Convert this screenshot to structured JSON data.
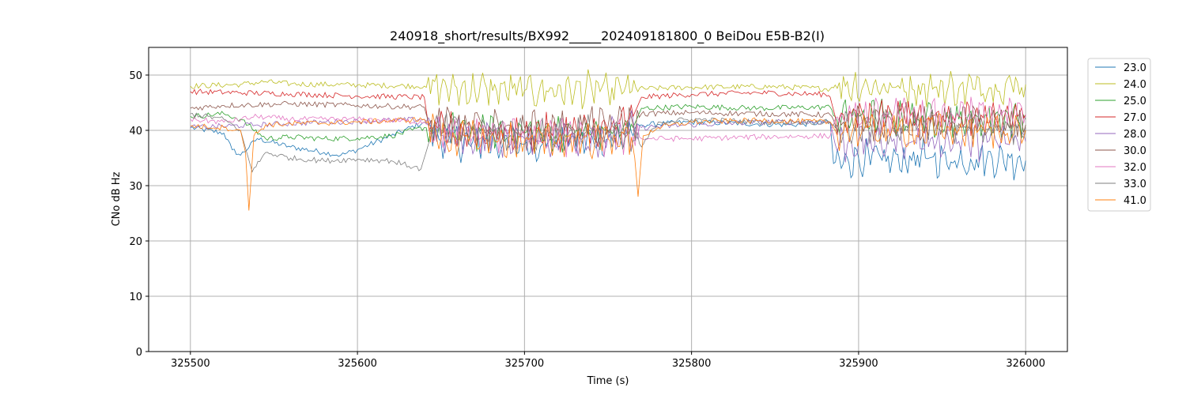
{
  "chart_data": {
    "type": "line",
    "title": "240918_short/results/BX992_____202409181800_0 BeiDou E5B-B2(I)",
    "xlabel": "Time (s)",
    "ylabel": "CNo dB Hz",
    "xlim": [
      325475,
      326025
    ],
    "ylim": [
      0,
      55
    ],
    "x_ticks": [
      325500,
      325600,
      325700,
      325800,
      325900,
      326000
    ],
    "x_tick_labels": [
      "325500",
      "325600",
      "325700",
      "325800",
      "325900",
      "326000"
    ],
    "y_ticks": [
      0,
      10,
      20,
      30,
      40,
      50
    ],
    "y_tick_labels": [
      "0",
      "10",
      "20",
      "30",
      "40",
      "50"
    ],
    "grid": true,
    "legend_position": "outside-right",
    "series": [
      {
        "name": "23.0",
        "color": "#1f77b4",
        "values": [
          [
            325500,
            40.5
          ],
          [
            325520,
            39.5
          ],
          [
            325525,
            36.5
          ],
          [
            325530,
            35.5
          ],
          [
            325540,
            38.5
          ],
          [
            325560,
            37.0
          ],
          [
            325580,
            36.0
          ],
          [
            325590,
            35.5
          ],
          [
            325600,
            36.5
          ],
          [
            325620,
            39.0
          ],
          [
            325640,
            41.5
          ],
          [
            325650,
            38.0
          ],
          [
            325700,
            37.5
          ],
          [
            325750,
            38.5
          ],
          [
            325765,
            39.0
          ],
          [
            325770,
            41.0
          ],
          [
            325800,
            41.5
          ],
          [
            325860,
            41.0
          ],
          [
            325883,
            41.5
          ],
          [
            325885,
            34.0
          ],
          [
            325900,
            35.0
          ],
          [
            325920,
            34.5
          ],
          [
            325940,
            35.0
          ],
          [
            325960,
            34.5
          ],
          [
            325980,
            35.0
          ],
          [
            326000,
            34.5
          ]
        ]
      },
      {
        "name": "24.0",
        "color": "#bcbd22",
        "values": [
          [
            325500,
            48.0
          ],
          [
            325530,
            48.3
          ],
          [
            325545,
            48.8
          ],
          [
            325560,
            48.4
          ],
          [
            325600,
            48.2
          ],
          [
            325640,
            48.0
          ],
          [
            325650,
            47.5
          ],
          [
            325700,
            47.2
          ],
          [
            325750,
            47.3
          ],
          [
            325800,
            47.8
          ],
          [
            325850,
            47.9
          ],
          [
            325883,
            47.5
          ],
          [
            325886,
            48.2
          ],
          [
            325920,
            47.8
          ],
          [
            325960,
            47.6
          ],
          [
            326000,
            48.3
          ]
        ]
      },
      {
        "name": "25.0",
        "color": "#2ca02c",
        "values": [
          [
            325500,
            42.5
          ],
          [
            325520,
            43.0
          ],
          [
            325530,
            42.0
          ],
          [
            325545,
            38.5
          ],
          [
            325560,
            38.8
          ],
          [
            325580,
            38.5
          ],
          [
            325600,
            38.6
          ],
          [
            325620,
            39.0
          ],
          [
            325640,
            40.5
          ],
          [
            325650,
            40.0
          ],
          [
            325700,
            39.5
          ],
          [
            325750,
            39.8
          ],
          [
            325765,
            40.5
          ],
          [
            325770,
            44.0
          ],
          [
            325800,
            44.3
          ],
          [
            325840,
            44.0
          ],
          [
            325883,
            44.2
          ],
          [
            325886,
            42.5
          ],
          [
            325920,
            42.3
          ],
          [
            325960,
            42.0
          ],
          [
            326000,
            42.0
          ]
        ]
      },
      {
        "name": "27.0",
        "color": "#d62728",
        "values": [
          [
            325500,
            47.0
          ],
          [
            325530,
            46.8
          ],
          [
            325560,
            46.6
          ],
          [
            325600,
            46.2
          ],
          [
            325640,
            46.0
          ],
          [
            325643,
            40.0
          ],
          [
            325700,
            39.5
          ],
          [
            325750,
            39.8
          ],
          [
            325765,
            42.5
          ],
          [
            325770,
            46.0
          ],
          [
            325800,
            46.5
          ],
          [
            325840,
            46.8
          ],
          [
            325880,
            46.5
          ],
          [
            325883,
            46.0
          ],
          [
            325886,
            42.5
          ],
          [
            325920,
            42.8
          ],
          [
            325960,
            42.5
          ],
          [
            326000,
            42.8
          ]
        ]
      },
      {
        "name": "28.0",
        "color": "#9467bd",
        "values": [
          [
            325500,
            40.5
          ],
          [
            325540,
            41.0
          ],
          [
            325580,
            41.5
          ],
          [
            325620,
            41.8
          ],
          [
            325640,
            42.0
          ],
          [
            325650,
            39.0
          ],
          [
            325700,
            38.5
          ],
          [
            325750,
            38.8
          ],
          [
            325770,
            40.5
          ],
          [
            325800,
            41.0
          ],
          [
            325840,
            41.5
          ],
          [
            325883,
            41.5
          ],
          [
            325886,
            37.5
          ],
          [
            325920,
            38.0
          ],
          [
            325960,
            38.0
          ],
          [
            326000,
            38.0
          ]
        ]
      },
      {
        "name": "30.0",
        "color": "#8c564b",
        "values": [
          [
            325500,
            44.0
          ],
          [
            325520,
            44.5
          ],
          [
            325560,
            44.8
          ],
          [
            325600,
            44.5
          ],
          [
            325640,
            44.2
          ],
          [
            325643,
            41.0
          ],
          [
            325700,
            40.5
          ],
          [
            325750,
            40.8
          ],
          [
            325765,
            41.0
          ],
          [
            325770,
            43.0
          ],
          [
            325800,
            43.2
          ],
          [
            325840,
            43.0
          ],
          [
            325883,
            42.8
          ],
          [
            325886,
            41.0
          ],
          [
            325920,
            41.5
          ],
          [
            325960,
            41.2
          ],
          [
            326000,
            41.0
          ]
        ]
      },
      {
        "name": "32.0",
        "color": "#e377c2",
        "values": [
          [
            325500,
            42.0
          ],
          [
            325520,
            41.5
          ],
          [
            325540,
            42.5
          ],
          [
            325560,
            42.0
          ],
          [
            325600,
            42.0
          ],
          [
            325640,
            41.5
          ],
          [
            325650,
            39.5
          ],
          [
            325700,
            39.0
          ],
          [
            325750,
            38.5
          ],
          [
            325765,
            39.0
          ],
          [
            325770,
            38.5
          ],
          [
            325800,
            38.5
          ],
          [
            325840,
            38.8
          ],
          [
            325883,
            39.0
          ],
          [
            325886,
            42.0
          ],
          [
            325920,
            42.5
          ],
          [
            325960,
            42.5
          ],
          [
            326000,
            42.8
          ]
        ]
      },
      {
        "name": "33.0",
        "color": "#7f7f7f",
        "values": [
          [
            325500,
            43.0
          ],
          [
            325520,
            42.0
          ],
          [
            325530,
            40.0
          ],
          [
            325537,
            32.5
          ],
          [
            325545,
            36.0
          ],
          [
            325560,
            35.0
          ],
          [
            325580,
            34.5
          ],
          [
            325600,
            34.8
          ],
          [
            325620,
            34.5
          ],
          [
            325638,
            33.0
          ],
          [
            325645,
            40.0
          ],
          [
            325700,
            39.5
          ],
          [
            325750,
            39.5
          ],
          [
            325760,
            38.5
          ],
          [
            325770,
            37.0
          ],
          [
            325780,
            41.5
          ],
          [
            325800,
            42.0
          ],
          [
            325840,
            41.5
          ],
          [
            325883,
            41.5
          ],
          [
            325886,
            40.5
          ],
          [
            325920,
            40.5
          ],
          [
            325960,
            40.5
          ],
          [
            326000,
            40.5
          ]
        ]
      },
      {
        "name": "41.0",
        "color": "#ff7f0e",
        "values": [
          [
            325500,
            40.8
          ],
          [
            325520,
            40.5
          ],
          [
            325530,
            40.0
          ],
          [
            325533,
            36.0
          ],
          [
            325535,
            25.5
          ],
          [
            325538,
            39.0
          ],
          [
            325545,
            41.0
          ],
          [
            325560,
            41.2
          ],
          [
            325600,
            41.5
          ],
          [
            325640,
            42.0
          ],
          [
            325650,
            38.5
          ],
          [
            325700,
            38.0
          ],
          [
            325750,
            38.5
          ],
          [
            325764,
            38.8
          ],
          [
            325766,
            35.0
          ],
          [
            325768,
            28.0
          ],
          [
            325771,
            39.0
          ],
          [
            325780,
            40.5
          ],
          [
            325800,
            41.5
          ],
          [
            325840,
            41.8
          ],
          [
            325883,
            41.5
          ],
          [
            325886,
            40.0
          ],
          [
            325920,
            40.0
          ],
          [
            325960,
            40.0
          ],
          [
            326000,
            40.0
          ]
        ]
      }
    ]
  }
}
